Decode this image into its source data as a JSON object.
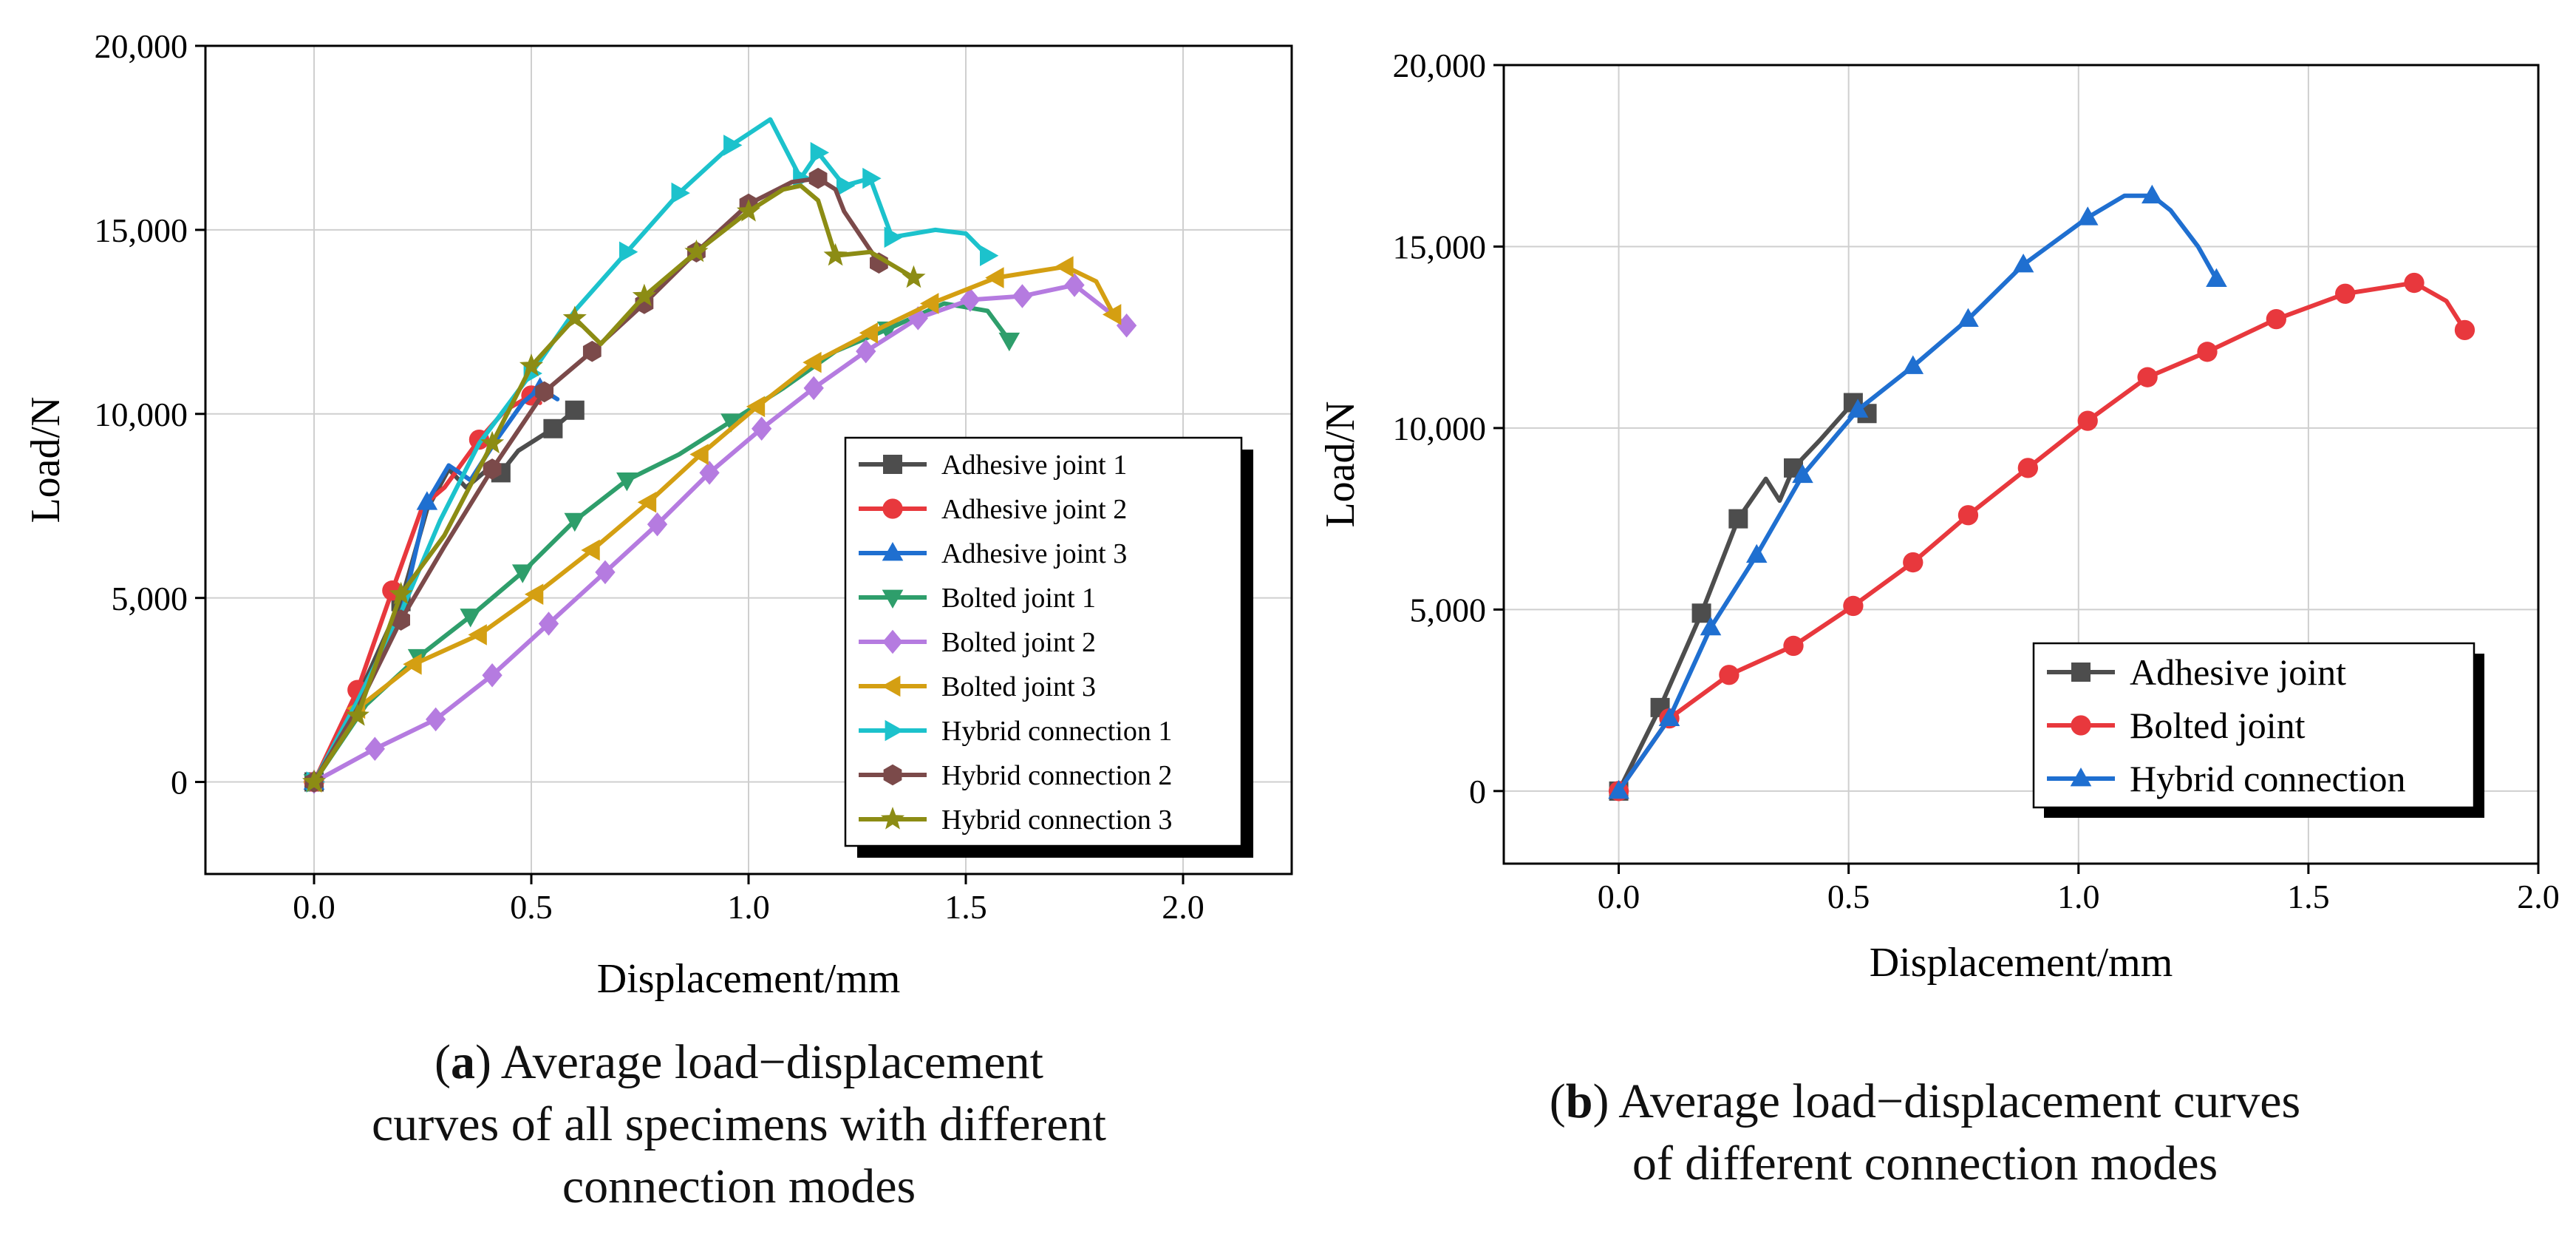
{
  "chart_data": [
    {
      "id": "a",
      "type": "line",
      "title": "",
      "xlabel": "Displacement/mm",
      "ylabel": "Load/N",
      "xlim": [
        -0.25,
        2.25
      ],
      "ylim": [
        -2500,
        20000
      ],
      "xticks": [
        0.0,
        0.5,
        1.0,
        1.5,
        2.0
      ],
      "xtick_labels": [
        "0.0",
        "0.5",
        "1.0",
        "1.5",
        "2.0"
      ],
      "yticks": [
        0,
        5000,
        10000,
        15000,
        20000
      ],
      "ytick_labels": [
        "0",
        "5,000",
        "10,000",
        "15,000",
        "20,000"
      ],
      "grid": true,
      "legend_position": "bottom-right",
      "caption_letter": "a",
      "caption_lines": [
        ") Average load−displacement",
        "curves of all specimens with different",
        "connection modes"
      ],
      "series": [
        {
          "name": "Adhesive joint 1",
          "color": "#4d4d4d",
          "marker": "square",
          "x": [
            0.0,
            0.1,
            0.2,
            0.26,
            0.31,
            0.35,
            0.4,
            0.43,
            0.47,
            0.55,
            0.6
          ],
          "y": [
            0,
            2300,
            4900,
            7400,
            8500,
            8000,
            8500,
            8400,
            9000,
            9600,
            10100
          ],
          "mx": [
            0.0,
            0.2,
            0.43,
            0.55,
            0.6
          ]
        },
        {
          "name": "Adhesive joint 2",
          "color": "#e8383d",
          "marker": "circle",
          "x": [
            0.0,
            0.1,
            0.18,
            0.25,
            0.3,
            0.38,
            0.44,
            0.5,
            0.52
          ],
          "y": [
            0,
            2500,
            5200,
            7500,
            8000,
            9300,
            10100,
            10500,
            10300
          ],
          "mx": [
            0.0,
            0.1,
            0.18,
            0.38,
            0.5
          ]
        },
        {
          "name": "Adhesive joint 3",
          "color": "#1f6fd0",
          "marker": "triangle-up",
          "x": [
            0.0,
            0.1,
            0.2,
            0.26,
            0.31,
            0.36,
            0.42,
            0.48,
            0.52,
            0.56
          ],
          "y": [
            0,
            2000,
            4500,
            7600,
            8600,
            8200,
            9300,
            10300,
            10700,
            10400
          ],
          "mx": [
            0.0,
            0.26,
            0.52
          ]
        },
        {
          "name": "Bolted joint 1",
          "color": "#2e9e6b",
          "marker": "triangle-down",
          "x": [
            0.0,
            0.12,
            0.24,
            0.36,
            0.48,
            0.6,
            0.72,
            0.84,
            0.96,
            1.08,
            1.2,
            1.32,
            1.45,
            1.55,
            1.6
          ],
          "y": [
            0,
            2100,
            3400,
            4500,
            5700,
            7100,
            8200,
            8900,
            9800,
            10700,
            11700,
            12300,
            13000,
            12800,
            12000
          ],
          "mx": [
            0.0,
            0.24,
            0.36,
            0.48,
            0.6,
            0.72,
            0.96,
            1.32,
            1.6
          ]
        },
        {
          "name": "Bolted joint 2",
          "color": "#b57be0",
          "marker": "diamond",
          "x": [
            0.0,
            0.14,
            0.28,
            0.41,
            0.54,
            0.67,
            0.79,
            0.91,
            1.03,
            1.15,
            1.27,
            1.39,
            1.51,
            1.63,
            1.75,
            1.87
          ],
          "y": [
            0,
            900,
            1700,
            2900,
            4300,
            5700,
            7000,
            8400,
            9600,
            10700,
            11700,
            12600,
            13100,
            13200,
            13500,
            12400
          ],
          "mx": [
            0.0,
            0.14,
            0.28,
            0.41,
            0.54,
            0.67,
            0.79,
            0.91,
            1.03,
            1.15,
            1.27,
            1.39,
            1.51,
            1.63,
            1.75,
            1.87
          ]
        },
        {
          "name": "Bolted joint 3",
          "color": "#d49f12",
          "marker": "triangle-left",
          "x": [
            0.0,
            0.1,
            0.23,
            0.38,
            0.51,
            0.64,
            0.77,
            0.89,
            1.02,
            1.15,
            1.28,
            1.42,
            1.57,
            1.73,
            1.8,
            1.84
          ],
          "y": [
            0,
            2000,
            3200,
            4000,
            5100,
            6300,
            7600,
            8900,
            10200,
            11400,
            12200,
            13000,
            13700,
            14000,
            13600,
            12700
          ],
          "mx": [
            0.0,
            0.1,
            0.23,
            0.38,
            0.51,
            0.64,
            0.77,
            0.89,
            1.02,
            1.15,
            1.28,
            1.42,
            1.57,
            1.73,
            1.84
          ]
        },
        {
          "name": "Hybrid connection 1",
          "color": "#1cc2cc",
          "marker": "triangle-right",
          "x": [
            0.0,
            0.1,
            0.2,
            0.29,
            0.38,
            0.5,
            0.6,
            0.72,
            0.84,
            0.96,
            1.05,
            1.12,
            1.16,
            1.22,
            1.28,
            1.33,
            1.43,
            1.5,
            1.55
          ],
          "y": [
            0,
            2200,
            4600,
            7100,
            9200,
            11100,
            12800,
            14400,
            16000,
            17300,
            18000,
            16400,
            17100,
            16200,
            16400,
            14800,
            15000,
            14900,
            14300
          ],
          "mx": [
            0.0,
            0.5,
            0.72,
            0.84,
            0.96,
            1.12,
            1.16,
            1.22,
            1.28,
            1.33,
            1.55
          ]
        },
        {
          "name": "Hybrid connection 2",
          "color": "#7b4a4a",
          "marker": "hexagon",
          "x": [
            0.0,
            0.1,
            0.2,
            0.3,
            0.41,
            0.53,
            0.64,
            0.76,
            0.88,
            1.0,
            1.1,
            1.16,
            1.2,
            1.22,
            1.3
          ],
          "y": [
            0,
            2000,
            4400,
            6400,
            8500,
            10600,
            11700,
            13000,
            14400,
            15700,
            16300,
            16400,
            16100,
            15500,
            14100
          ],
          "mx": [
            0.0,
            0.2,
            0.41,
            0.53,
            0.64,
            0.76,
            0.88,
            1.0,
            1.16,
            1.3
          ]
        },
        {
          "name": "Hybrid connection 3",
          "color": "#8c8c14",
          "marker": "star",
          "x": [
            0.0,
            0.1,
            0.2,
            0.3,
            0.41,
            0.5,
            0.6,
            0.66,
            0.76,
            0.88,
            1.0,
            1.08,
            1.12,
            1.16,
            1.2,
            1.28,
            1.38
          ],
          "y": [
            0,
            1800,
            5100,
            6700,
            9200,
            11300,
            12600,
            11900,
            13200,
            14400,
            15500,
            16100,
            16200,
            15800,
            14300,
            14400,
            13700
          ],
          "mx": [
            0.0,
            0.1,
            0.2,
            0.41,
            0.5,
            0.6,
            0.76,
            0.88,
            1.0,
            1.2,
            1.38
          ]
        }
      ]
    },
    {
      "id": "b",
      "type": "line",
      "title": "",
      "xlabel": "Displacement/mm",
      "ylabel": "Load/N",
      "xlim": [
        -0.25,
        2.0
      ],
      "ylim": [
        -2000,
        20000
      ],
      "xticks": [
        0.0,
        0.5,
        1.0,
        1.5,
        2.0
      ],
      "xtick_labels": [
        "0.0",
        "0.5",
        "1.0",
        "1.5",
        "2.0"
      ],
      "yticks": [
        0,
        5000,
        10000,
        15000,
        20000
      ],
      "ytick_labels": [
        "0",
        "5,000",
        "10,000",
        "15,000",
        "20,000"
      ],
      "grid": true,
      "legend_position": "bottom-right",
      "caption_letter": "b",
      "caption_lines": [
        ") Average load−displacement curves",
        "of different connection modes"
      ],
      "series": [
        {
          "name": "Adhesive joint",
          "color": "#4d4d4d",
          "marker": "square",
          "x": [
            0.0,
            0.09,
            0.18,
            0.26,
            0.32,
            0.35,
            0.38,
            0.44,
            0.51,
            0.54
          ],
          "y": [
            0,
            2300,
            4900,
            7500,
            8600,
            8000,
            8900,
            9700,
            10700,
            10400
          ],
          "mx": [
            0.0,
            0.09,
            0.18,
            0.26,
            0.38,
            0.51,
            0.54
          ]
        },
        {
          "name": "Bolted joint",
          "color": "#e8383d",
          "marker": "circle",
          "x": [
            0.0,
            0.11,
            0.24,
            0.38,
            0.51,
            0.64,
            0.76,
            0.89,
            1.02,
            1.15,
            1.28,
            1.43,
            1.58,
            1.73,
            1.8,
            1.84
          ],
          "y": [
            0,
            2000,
            3200,
            4000,
            5100,
            6300,
            7600,
            8900,
            10200,
            11400,
            12100,
            13000,
            13700,
            14000,
            13500,
            12700
          ],
          "mx": [
            0.0,
            0.11,
            0.24,
            0.38,
            0.51,
            0.64,
            0.76,
            0.89,
            1.02,
            1.15,
            1.28,
            1.43,
            1.58,
            1.73,
            1.84
          ]
        },
        {
          "name": "Hybrid connection",
          "color": "#1f6fd0",
          "marker": "triangle-up",
          "x": [
            0.0,
            0.11,
            0.2,
            0.3,
            0.4,
            0.52,
            0.64,
            0.76,
            0.88,
            1.02,
            1.1,
            1.16,
            1.2,
            1.26,
            1.3
          ],
          "y": [
            0,
            2000,
            4500,
            6500,
            8700,
            10500,
            11700,
            13000,
            14500,
            15800,
            16400,
            16400,
            16000,
            15000,
            14100
          ],
          "mx": [
            0.0,
            0.11,
            0.2,
            0.3,
            0.4,
            0.52,
            0.64,
            0.76,
            0.88,
            1.02,
            1.16,
            1.3
          ]
        }
      ]
    }
  ]
}
